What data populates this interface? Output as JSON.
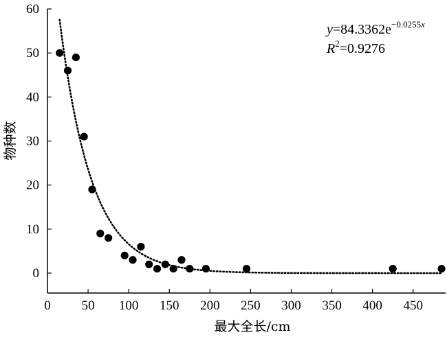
{
  "chart_data": {
    "type": "scatter",
    "title": "",
    "xlabel": "最大全长/cm",
    "ylabel": "物种数",
    "xlim": [
      0,
      490
    ],
    "ylim": [
      0,
      60
    ],
    "x_ticks": [
      0,
      50,
      100,
      150,
      200,
      250,
      300,
      350,
      400,
      450
    ],
    "y_ticks": [
      0,
      10,
      20,
      30,
      40,
      50,
      60
    ],
    "x_tick_labels": [
      "0",
      "50",
      "100",
      "150",
      "200",
      "250",
      "300",
      "350",
      "400",
      "450"
    ],
    "y_tick_labels": [
      "0",
      "10",
      "20",
      "30",
      "40",
      "50",
      "60"
    ],
    "grid": false,
    "series": [
      {
        "points": [
          {
            "x": 15,
            "y": 50
          },
          {
            "x": 25,
            "y": 46
          },
          {
            "x": 35,
            "y": 49
          },
          {
            "x": 45,
            "y": 31
          },
          {
            "x": 55,
            "y": 19
          },
          {
            "x": 65,
            "y": 9
          },
          {
            "x": 75,
            "y": 8
          },
          {
            "x": 95,
            "y": 4
          },
          {
            "x": 105,
            "y": 3
          },
          {
            "x": 115,
            "y": 6
          },
          {
            "x": 125,
            "y": 2
          },
          {
            "x": 135,
            "y": 1
          },
          {
            "x": 145,
            "y": 2
          },
          {
            "x": 155,
            "y": 1
          },
          {
            "x": 165,
            "y": 3
          },
          {
            "x": 175,
            "y": 1
          },
          {
            "x": 195,
            "y": 1
          },
          {
            "x": 245,
            "y": 1
          },
          {
            "x": 425,
            "y": 1
          },
          {
            "x": 485,
            "y": 1
          }
        ],
        "color": "#000000"
      }
    ],
    "trendline": {
      "type": "exponential",
      "a": 84.3362,
      "b": -0.0255,
      "x_range": [
        15,
        485
      ],
      "style": "dotted",
      "color": "#000000"
    },
    "annotation": {
      "equation_var": "y",
      "equation_body": "=84.3362e",
      "equation_exp": "−0.0255",
      "equation_exp_var": "x",
      "r2_var": "R",
      "r2_sup": "2",
      "r2_value": "=0.9276"
    }
  }
}
